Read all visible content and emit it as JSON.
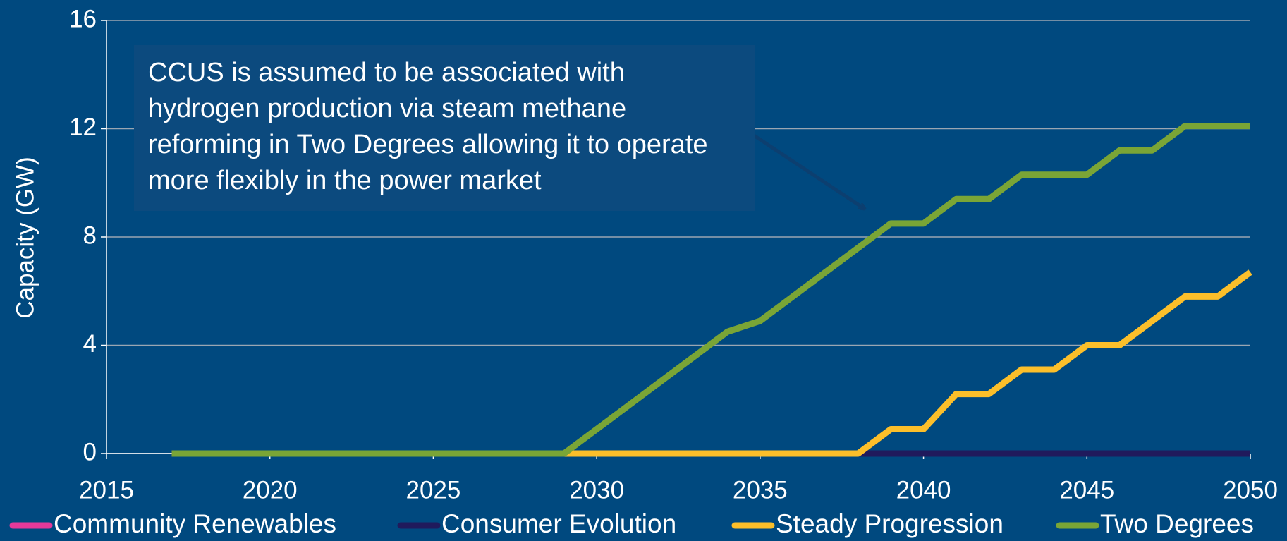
{
  "chart_data": {
    "type": "line",
    "ylabel": "Capacity (GW)",
    "annotation": "CCUS is assumed to be associated with hydrogen production via steam methane reforming in Two Degrees allowing it to operate more flexibly in the power market",
    "x": [
      2017,
      2018,
      2019,
      2020,
      2021,
      2022,
      2023,
      2024,
      2025,
      2026,
      2027,
      2028,
      2029,
      2030,
      2031,
      2032,
      2033,
      2034,
      2035,
      2036,
      2037,
      2038,
      2039,
      2040,
      2041,
      2042,
      2043,
      2044,
      2045,
      2046,
      2047,
      2048,
      2049,
      2050
    ],
    "series": [
      {
        "name": "Community Renewables",
        "color": "#e5399a",
        "values": [
          0,
          0,
          0,
          0,
          0,
          0,
          0,
          0,
          0,
          0,
          0,
          0,
          0,
          0,
          0,
          0,
          0,
          0,
          0,
          0,
          0,
          0,
          0,
          0,
          0,
          0,
          0,
          0,
          0,
          0,
          0,
          0,
          0,
          0
        ]
      },
      {
        "name": "Consumer Evolution",
        "color": "#201a5c",
        "values": [
          0,
          0,
          0,
          0,
          0,
          0,
          0,
          0,
          0,
          0,
          0,
          0,
          0,
          0,
          0,
          0,
          0,
          0,
          0,
          0,
          0,
          0,
          0,
          0,
          0,
          0,
          0,
          0,
          0,
          0,
          0,
          0,
          0,
          0
        ]
      },
      {
        "name": "Steady Progression",
        "color": "#fcbf2a",
        "values": [
          0,
          0,
          0,
          0,
          0,
          0,
          0,
          0,
          0,
          0,
          0,
          0,
          0,
          0,
          0,
          0,
          0,
          0,
          0,
          0,
          0,
          0,
          0.9,
          0.9,
          2.2,
          2.2,
          3.1,
          3.1,
          4.0,
          4.0,
          4.9,
          5.8,
          5.8,
          6.7
        ]
      },
      {
        "name": "Two Degrees",
        "color": "#7aa536",
        "values": [
          0,
          0,
          0,
          0,
          0,
          0,
          0,
          0,
          0,
          0,
          0,
          0,
          0,
          0.9,
          1.8,
          2.7,
          3.6,
          4.5,
          4.9,
          5.8,
          6.7,
          7.6,
          8.5,
          8.5,
          9.4,
          9.4,
          10.3,
          10.3,
          10.3,
          11.2,
          11.2,
          12.1,
          12.1,
          12.1
        ]
      }
    ],
    "xlim": [
      2015,
      2050
    ],
    "xticks": [
      2015,
      2020,
      2025,
      2030,
      2035,
      2040,
      2045,
      2050
    ],
    "ylim": [
      0,
      16
    ],
    "yticks": [
      0,
      4,
      8,
      12,
      16
    ],
    "grid": true,
    "legend": "bottom"
  }
}
